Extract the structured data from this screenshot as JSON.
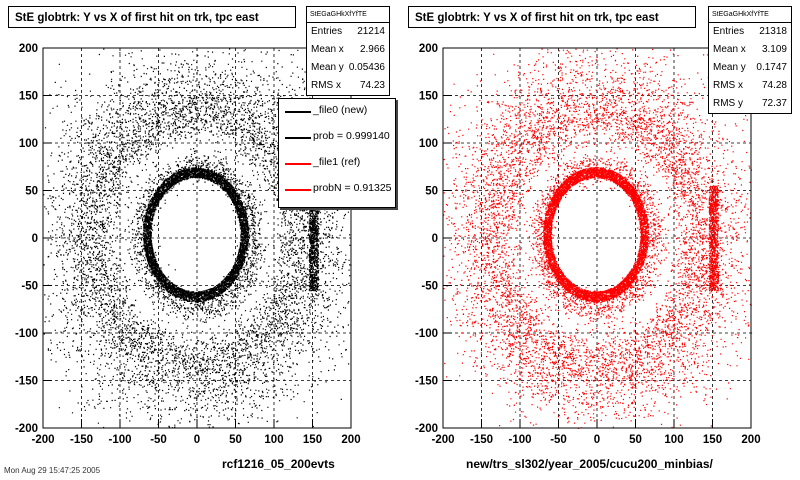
{
  "pads": [
    {
      "title": "StE globtrk: Y vs X of first hit on trk, tpc east",
      "stats": {
        "name": "StEGaGHkXfYfTE",
        "rows": [
          {
            "label": "Entries",
            "value": "21214"
          },
          {
            "label": "Mean x",
            "value": "2.966"
          },
          {
            "label": "Mean y",
            "value": "0.05436"
          },
          {
            "label": "RMS x",
            "value": "74.23"
          }
        ]
      },
      "legend": [
        {
          "label": "_file0 (new)",
          "color": "#000000"
        },
        {
          "label": "prob = 0.999140",
          "color": "#000000"
        },
        {
          "label": "_file1 (ref)",
          "color": "#ff0000"
        },
        {
          "label": "probN = 0.91325",
          "color": "#ff0000"
        }
      ],
      "file_label": "rcf1216_05_200evts",
      "marker_color": "#000000"
    },
    {
      "title": "StE globtrk: Y vs X of first hit on trk, tpc east",
      "stats": {
        "name": "StEGaGHkXfYfTE",
        "rows": [
          {
            "label": "Entries",
            "value": "21318"
          },
          {
            "label": "Mean x",
            "value": "3.109"
          },
          {
            "label": "Mean y",
            "value": "0.1747"
          },
          {
            "label": "RMS x",
            "value": "74.28"
          },
          {
            "label": "RMS y",
            "value": "72.37"
          }
        ]
      },
      "file_label": "new/trs_sl302/year_2005/cucu200_minbias/",
      "marker_color": "#ff0000"
    }
  ],
  "date_text": "Mon Aug 29 15:47:25 2005",
  "chart_data": [
    {
      "type": "scatter",
      "title": "StE globtrk: Y vs X of first hit on trk, tpc east",
      "xlim": [
        -200,
        200
      ],
      "ylim": [
        -200,
        200
      ],
      "x_ticks": [
        -200,
        -150,
        -100,
        -50,
        0,
        50,
        100,
        150,
        200
      ],
      "y_ticks": [
        -200,
        -150,
        -100,
        -50,
        0,
        50,
        100,
        150,
        200
      ],
      "grid": true,
      "entries": 21214,
      "mean_x": 2.966,
      "mean_y": 0.05436,
      "rms_x": 74.23,
      "color": "#000000"
    },
    {
      "type": "scatter",
      "title": "StE globtrk: Y vs X of first hit on trk, tpc east",
      "xlim": [
        -200,
        200
      ],
      "ylim": [
        -200,
        200
      ],
      "x_ticks": [
        -200,
        -150,
        -100,
        -50,
        0,
        50,
        100,
        150,
        200
      ],
      "y_ticks": [
        -200,
        -150,
        -100,
        -50,
        0,
        50,
        100,
        150,
        200
      ],
      "grid": true,
      "entries": 21318,
      "mean_x": 3.109,
      "mean_y": 0.1747,
      "rms_x": 74.28,
      "rms_y": 72.37,
      "color": "#ff0000"
    }
  ]
}
